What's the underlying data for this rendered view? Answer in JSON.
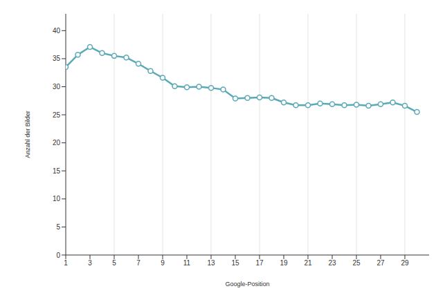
{
  "chart_data": {
    "type": "line",
    "x_label": "Google-Position",
    "y_label": "Anzahl der Bilder",
    "x": [
      1,
      2,
      3,
      4,
      5,
      6,
      7,
      8,
      9,
      10,
      11,
      12,
      13,
      14,
      15,
      16,
      17,
      18,
      19,
      20,
      21,
      22,
      23,
      24,
      25,
      26,
      27,
      28,
      29,
      30
    ],
    "values": [
      33.5,
      35.7,
      37.1,
      36.0,
      35.5,
      35.2,
      34.1,
      32.8,
      31.6,
      30.1,
      29.9,
      30.0,
      29.8,
      29.5,
      27.9,
      28.0,
      28.1,
      28.0,
      27.2,
      26.7,
      26.7,
      27.0,
      26.9,
      26.7,
      26.8,
      26.6,
      26.9,
      27.2,
      26.6,
      25.5
    ],
    "color": "#5aa9b6",
    "marker": "circle",
    "xlim": [
      1,
      31
    ],
    "ylim": [
      0,
      43
    ],
    "xticks": [
      1,
      3,
      5,
      7,
      9,
      11,
      13,
      15,
      17,
      19,
      21,
      23,
      25,
      27,
      29
    ],
    "yticks": [
      0,
      5,
      10,
      15,
      20,
      25,
      30,
      35,
      40
    ],
    "grid": true
  }
}
